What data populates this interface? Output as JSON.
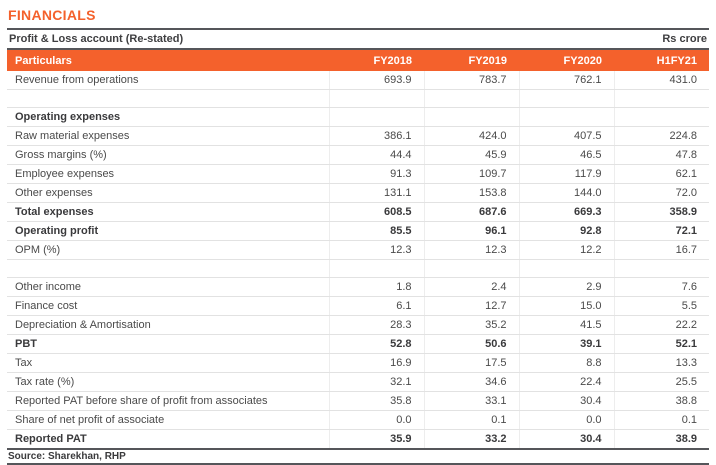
{
  "page_title": "FINANCIALS",
  "caption": {
    "left": "Profit & Loss account (Re-stated)",
    "right": "Rs crore"
  },
  "source_note": "Source: Sharekhan, RHP",
  "colors": {
    "accent_orange": "#F4612C",
    "header_text": "#FFFFFF",
    "rule_dark": "#55565A",
    "row_border": "#E2E2E2",
    "body_text": "#4A4A4A"
  },
  "chart_data": {
    "type": "table",
    "title": "Profit & Loss account (Re-stated)",
    "unit": "Rs crore",
    "columns": [
      "Particulars",
      "FY2018",
      "FY2019",
      "FY2020",
      "H1FY21"
    ],
    "rows": [
      {
        "label": "Revenue from operations",
        "values": [
          "693.9",
          "783.7",
          "762.1",
          "431.0"
        ],
        "bold": false
      },
      {
        "label": "",
        "values": [
          "",
          "",
          "",
          ""
        ],
        "bold": false
      },
      {
        "label": "Operating expenses",
        "values": [
          "",
          "",
          "",
          ""
        ],
        "bold": true
      },
      {
        "label": "Raw material expenses",
        "values": [
          "386.1",
          "424.0",
          "407.5",
          "224.8"
        ],
        "bold": false
      },
      {
        "label": "Gross margins (%)",
        "values": [
          "44.4",
          "45.9",
          "46.5",
          "47.8"
        ],
        "bold": false
      },
      {
        "label": "Employee expenses",
        "values": [
          "91.3",
          "109.7",
          "117.9",
          "62.1"
        ],
        "bold": false
      },
      {
        "label": "Other expenses",
        "values": [
          "131.1",
          "153.8",
          "144.0",
          "72.0"
        ],
        "bold": false
      },
      {
        "label": "Total expenses",
        "values": [
          "608.5",
          "687.6",
          "669.3",
          "358.9"
        ],
        "bold": true
      },
      {
        "label": "Operating profit",
        "values": [
          "85.5",
          "96.1",
          "92.8",
          "72.1"
        ],
        "bold": true
      },
      {
        "label": "OPM (%)",
        "values": [
          "12.3",
          "12.3",
          "12.2",
          "16.7"
        ],
        "bold": false
      },
      {
        "label": "",
        "values": [
          "",
          "",
          "",
          ""
        ],
        "bold": false
      },
      {
        "label": "Other income",
        "values": [
          "1.8",
          "2.4",
          "2.9",
          "7.6"
        ],
        "bold": false
      },
      {
        "label": "Finance cost",
        "values": [
          "6.1",
          "12.7",
          "15.0",
          "5.5"
        ],
        "bold": false
      },
      {
        "label": "Depreciation & Amortisation",
        "values": [
          "28.3",
          "35.2",
          "41.5",
          "22.2"
        ],
        "bold": false
      },
      {
        "label": "PBT",
        "values": [
          "52.8",
          "50.6",
          "39.1",
          "52.1"
        ],
        "bold": true
      },
      {
        "label": "Tax",
        "values": [
          "16.9",
          "17.5",
          "8.8",
          "13.3"
        ],
        "bold": false
      },
      {
        "label": "Tax rate (%)",
        "values": [
          "32.1",
          "34.6",
          "22.4",
          "25.5"
        ],
        "bold": false
      },
      {
        "label": "Reported PAT before share of profit from associates",
        "values": [
          "35.8",
          "33.1",
          "30.4",
          "38.8"
        ],
        "bold": false
      },
      {
        "label": "Share of net profit of associate",
        "values": [
          "0.0",
          "0.1",
          "0.0",
          "0.1"
        ],
        "bold": false
      },
      {
        "label": "Reported PAT",
        "values": [
          "35.9",
          "33.2",
          "30.4",
          "38.9"
        ],
        "bold": true
      }
    ]
  }
}
